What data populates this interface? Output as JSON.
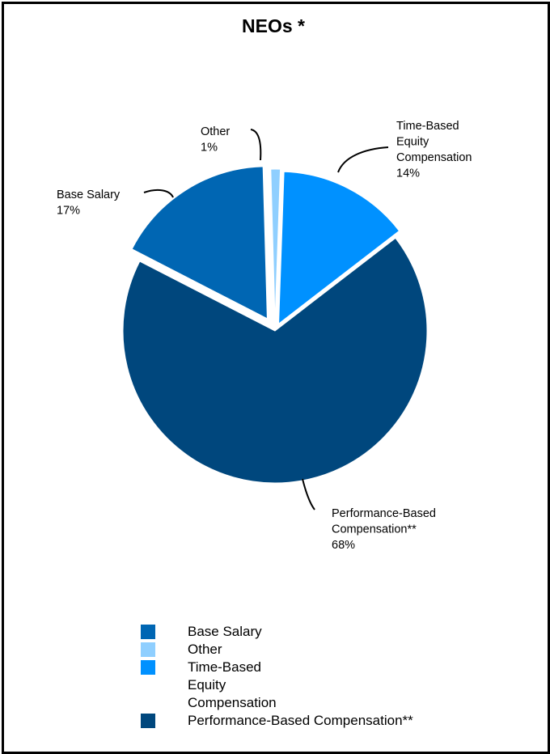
{
  "chart_data": {
    "type": "pie",
    "title": "NEOs *",
    "slices": [
      {
        "name": "Time-Based Equity Compensation",
        "label_lines": [
          "Time-Based",
          "Equity",
          "Compensation",
          "14%"
        ],
        "value": 14,
        "color": "#0091ff"
      },
      {
        "name": "Performance-Based Compensation**",
        "label_lines": [
          "Performance-Based",
          "Compensation**",
          "68%"
        ],
        "value": 68,
        "color": "#00477d"
      },
      {
        "name": "Base Salary",
        "label_lines": [
          "Base Salary",
          "17%"
        ],
        "value": 17,
        "color": "#0066b3"
      },
      {
        "name": "Other",
        "label_lines": [
          "Other",
          "1%"
        ],
        "value": 1,
        "color": "#8fcfff"
      }
    ],
    "legend": [
      {
        "label": "Base Salary",
        "color": "#0066b3"
      },
      {
        "label": "Other",
        "color": "#8fcfff"
      },
      {
        "label": "Time-Based Equity Compensation",
        "color": "#0091ff"
      },
      {
        "label": "Performance-Based Compensation**",
        "color": "#00477d"
      }
    ]
  }
}
